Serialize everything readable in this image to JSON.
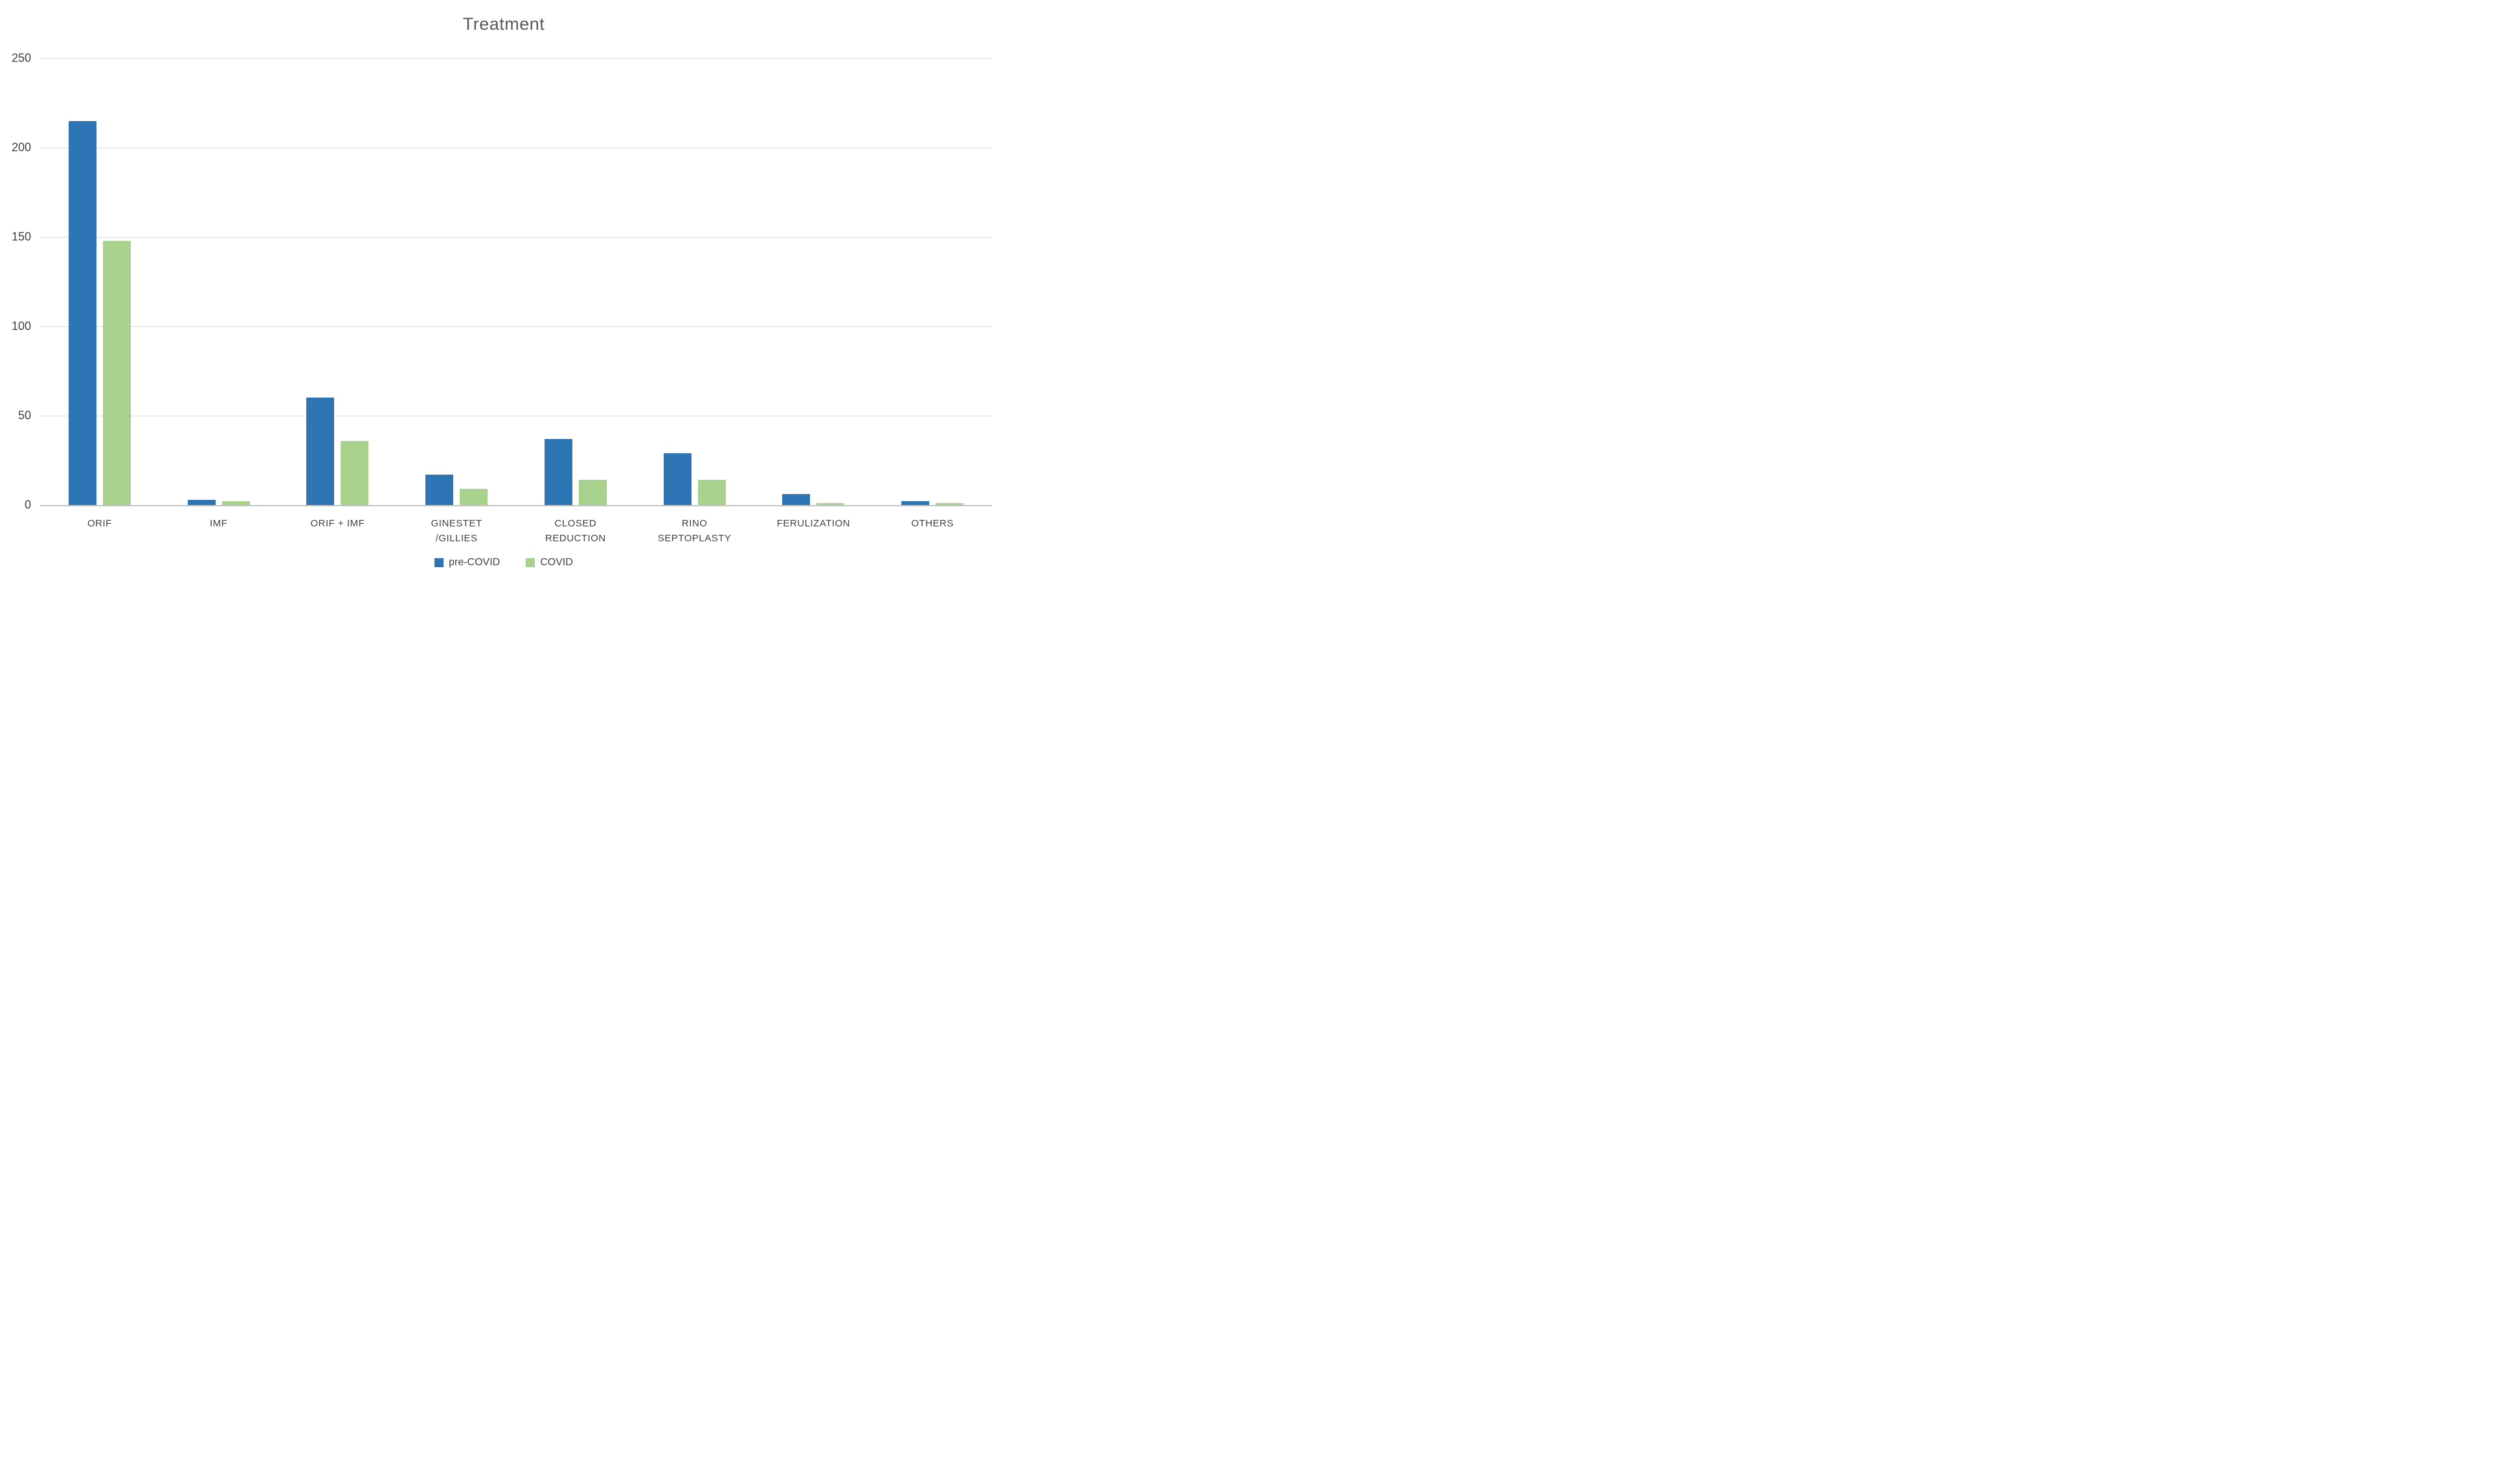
{
  "title": "Treatment",
  "colors": {
    "pre_covid": "#2E75B6",
    "covid": "#A9D18E",
    "gridline": "#D9D9D9",
    "axis_line": "#C3C3C3",
    "title_text": "#595959",
    "label_text": "#404040"
  },
  "legend": {
    "items": [
      {
        "label": "pre-COVID",
        "color": "#2E75B6"
      },
      {
        "label": "COVID",
        "color": "#A9D18E"
      }
    ]
  },
  "chart_data": {
    "type": "bar",
    "title": "Treatment",
    "categories": [
      "ORIF",
      "IMF",
      "ORIF + IMF",
      "GINESTET\n/GILLIES",
      "CLOSED\nREDUCTION",
      "RINO\nSEPTOPLASTY",
      "FERULIZATION",
      "OTHERS"
    ],
    "series": [
      {
        "name": "pre-COVID",
        "color": "#2E75B6",
        "values": [
          215,
          3,
          60,
          17,
          37,
          29,
          6,
          2
        ]
      },
      {
        "name": "COVID",
        "color": "#A9D18E",
        "values": [
          148,
          2,
          36,
          9,
          14,
          14,
          1,
          1
        ]
      }
    ],
    "xlabel": "",
    "ylabel": "",
    "ylim": [
      0,
      250
    ],
    "yticks": [
      0,
      50,
      100,
      150,
      200,
      250
    ],
    "grid": "horizontal",
    "legend_position": "bottom"
  }
}
